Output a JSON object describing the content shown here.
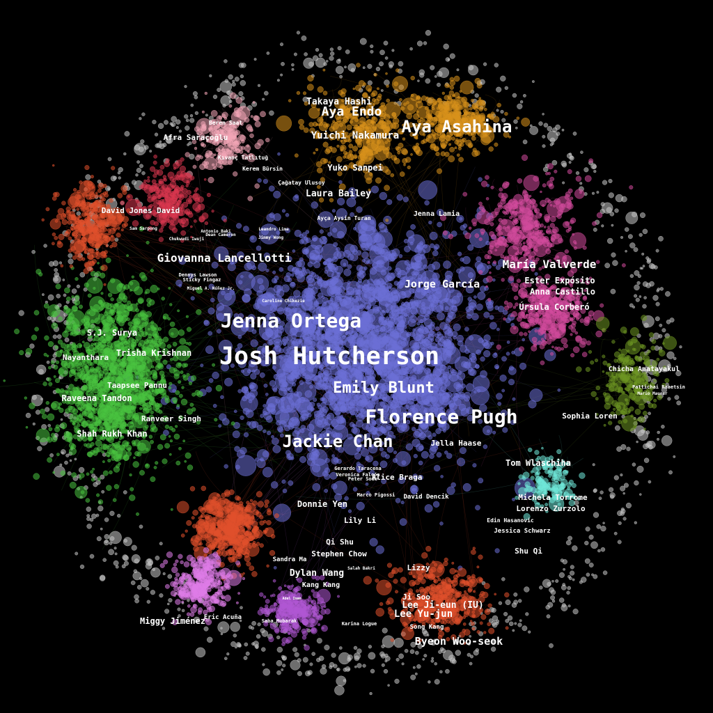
{
  "clusters": [
    {
      "id": "hollywood",
      "color": "#6b6fd6",
      "nodes": 2200
    },
    {
      "id": "turkish",
      "color": "#f3a6b6",
      "nodes": 200
    },
    {
      "id": "japanese",
      "color": "#d8921c",
      "nodes": 700
    },
    {
      "id": "crimson",
      "color": "#d8374f",
      "nodes": 260
    },
    {
      "id": "spanish",
      "color": "#d24a9c",
      "nodes": 700
    },
    {
      "id": "indian",
      "color": "#48c23f",
      "nodes": 1300
    },
    {
      "id": "hk_chinese",
      "color": "#e0502b",
      "nodes": 420
    },
    {
      "id": "korean",
      "color": "#e0502b",
      "nodes": 380
    },
    {
      "id": "chinese_west",
      "color": "#e0502b",
      "nodes": 320
    },
    {
      "id": "latam",
      "color": "#df7ce8",
      "nodes": 260
    },
    {
      "id": "arabic",
      "color": "#b058d4",
      "nodes": 260
    },
    {
      "id": "thai",
      "color": "#6d9622",
      "nodes": 220
    },
    {
      "id": "italian",
      "color": "#6fe8d8",
      "nodes": 160
    },
    {
      "id": "periphery",
      "color": "#c8c8c8",
      "nodes": 900
    }
  ],
  "labels": {
    "l01": "Takaya Hashi",
    "l02": "Aya Endo",
    "l03": "Aya Asahina",
    "l04": "Yuichi Nakamura",
    "l05": "Yuko Sanpei",
    "l06": "Laura Bailey",
    "l07": "Jenna Lamia",
    "l08": "Ayça Aysin Turan",
    "l09": "Beren Saat",
    "l10": "Afra Saraçoğlu",
    "l11": "Kıvanç Tatlıtuğ",
    "l12": "Kerem Bürsin",
    "l13": "Çağatay Ulusoy",
    "l14": "David Jones David",
    "l15": "Sam Sarpong",
    "l16": "Antonio Baki",
    "l17": "Dean Cameron",
    "l18": "Chukwudi Iwuji",
    "l19": "Leandro Lima",
    "l20": "Jimmy Wong",
    "l21": "Giovanna Lancellotti",
    "l22": "Dennys Lawson",
    "l23": "Sticky Fingaz",
    "l24": "Miguel A. Núñez Jr.",
    "l25": "Caroline Chikezie",
    "l26": "María Valverde",
    "l27": "Jorge García",
    "l28": "Ester Expósito",
    "l29": "Anna Castillo",
    "l30": "Úrsula Corberó",
    "l31": "Jenna Ortega",
    "l32": "Josh Hutcherson",
    "l33": "Emily Blunt",
    "l34": "Florence Pugh",
    "l35": "Jackie Chan",
    "l36": "S.J. Surya",
    "l37": "Trisha Krishnan",
    "l38": "Nayanthara",
    "l39": "Taapsee Pannu",
    "l40": "Raveena Tandon",
    "l41": "Ranveer Singh",
    "l42": "Shah Rukh Khan",
    "l43": "Chicha Amatayakul",
    "l44": "Pattichai Raaetsin",
    "l45": "Mario Maurer",
    "l46": "Sophia Loren",
    "l47": "Jella Haase",
    "l48": "Tom Wlaschiha",
    "l49": "Michela Torrome",
    "l50": "Lorenzo Zurzolo",
    "l51": "Edin Hasanovic",
    "l52": "Jessica Schwarz",
    "l53": "Shu Qi",
    "l54": "Gerardo Taracena",
    "l55": "Veronica Falcón",
    "l56": "Peter Sodo",
    "l57": "Alice Braga",
    "l58": "Marco Pigossi",
    "l59": "David Dencik",
    "l60": "Donnie Yen",
    "l61": "Lily Li",
    "l62": "Qi Shu",
    "l63": "Stephen Chow",
    "l64": "Sandra Ma",
    "l65": "Dylan Wang",
    "l66": "Kang Kang",
    "l67": "Lizzy",
    "l68": "Ji Soo",
    "l69": "Lee Ji-eun (IU)",
    "l70": "Lee Yu-jun",
    "l71": "Song Kang",
    "l72": "Byeon Woo-seok",
    "l73": "Miggy Jiménez",
    "l74": "Eric Acuña",
    "l75": "Saba Mubarak",
    "l76": "Adel Imam",
    "l77": "Karina Logue",
    "l78": "Salah Bakri"
  }
}
